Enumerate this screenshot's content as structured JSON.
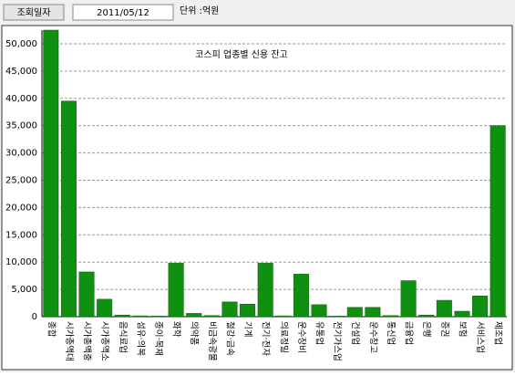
{
  "header": {
    "date_label": "조회일자",
    "date": "2011/05/12",
    "unit": "단위 :억원"
  },
  "chart_data": {
    "type": "bar",
    "title": "코스피 업종별 신용 잔고",
    "categories": [
      "종합",
      "시가총액대",
      "시가총액중",
      "시가총액소",
      "음식료업",
      "섬유·의복",
      "종이·목재",
      "화학",
      "의약품",
      "비금속광물",
      "철강·금속",
      "기계",
      "전기·전자",
      "의료정밀",
      "운수장비",
      "유통업",
      "전기가스업",
      "건설업",
      "운수창고",
      "통신업",
      "금융업",
      "은행",
      "증권",
      "보험",
      "서비스업",
      "제조업"
    ],
    "values": [
      52500,
      39500,
      8200,
      3200,
      300,
      150,
      100,
      9800,
      600,
      200,
      2700,
      2300,
      9800,
      150,
      7800,
      2200,
      100,
      1700,
      1700,
      200,
      6600,
      300,
      3000,
      1000,
      3800,
      35000
    ],
    "color": "#109010",
    "ylim": [
      0,
      52500
    ],
    "yticks": [
      0,
      {
        "value": 5000,
        "label": "5,000"
      },
      {
        "value": 10000,
        "label": "10,000"
      },
      {
        "value": 15000,
        "label": "15,000"
      },
      {
        "value": 20000,
        "label": "20,000"
      },
      {
        "value": 25000,
        "label": "25,000"
      },
      {
        "value": 30000,
        "label": "30,000"
      },
      {
        "value": 35000,
        "label": "35,000"
      },
      {
        "value": 40000,
        "label": "40,000"
      },
      {
        "value": 45000,
        "label": "45,000"
      },
      {
        "value": 50000,
        "label": "50,000"
      }
    ],
    "grid": true
  }
}
